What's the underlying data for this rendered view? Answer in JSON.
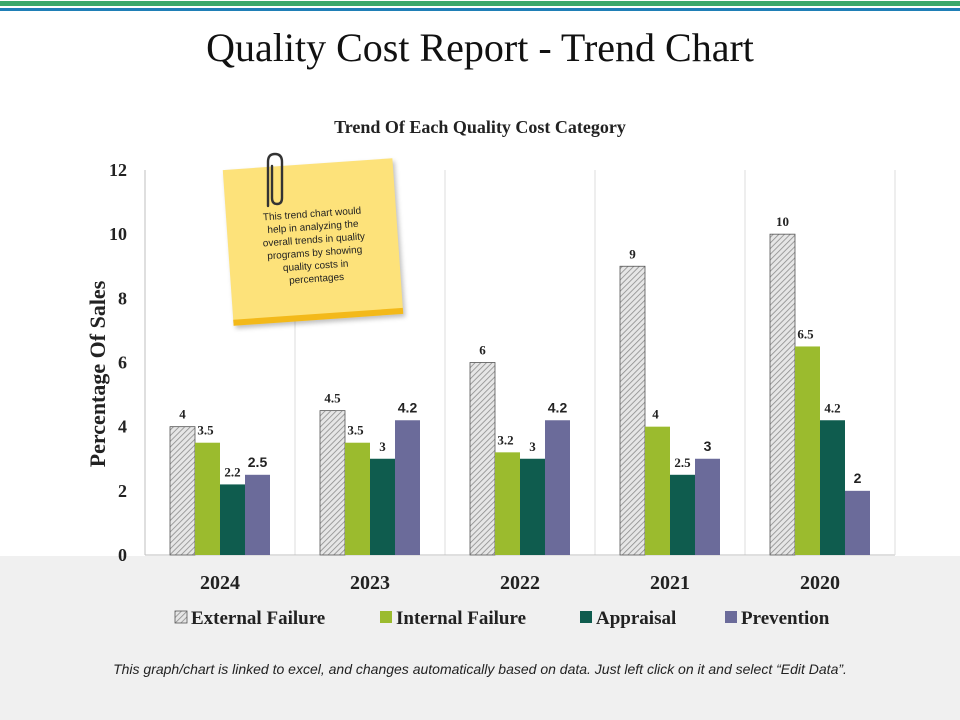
{
  "page": {
    "title": "Quality Cost Report - Trend Chart",
    "footer_note": "This graph/chart is linked to excel, and changes automatically based on data. Just left click on it and select “Edit Data”."
  },
  "sticky_note": {
    "text": "This  trend chart would  help in analyzing the overall trends in quality programs by showing quality costs in percentages"
  },
  "chart_data": {
    "type": "bar",
    "title": "Trend Of Each Quality Cost Category",
    "xlabel": "",
    "ylabel": "Percentage Of Sales",
    "ylim": [
      0,
      12
    ],
    "yticks": [
      0,
      2,
      4,
      6,
      8,
      10,
      12
    ],
    "categories": [
      "2024",
      "2023",
      "2022",
      "2021",
      "2020"
    ],
    "series": [
      {
        "name": "External Failure",
        "values": [
          4,
          4.5,
          6,
          9,
          10
        ],
        "color": "#d9d9d9"
      },
      {
        "name": "Internal Failure",
        "values": [
          3.5,
          3.5,
          3.2,
          4,
          6.5
        ],
        "color": "#9bbb2e"
      },
      {
        "name": "Appraisal",
        "values": [
          2.2,
          3,
          3,
          2.5,
          4.2
        ],
        "color": "#0f5c4e"
      },
      {
        "name": "Prevention",
        "values": [
          2.5,
          4.2,
          4.2,
          3,
          2
        ],
        "color": "#6b6b9a"
      }
    ],
    "legend_position": "bottom",
    "grid": "vertical"
  }
}
